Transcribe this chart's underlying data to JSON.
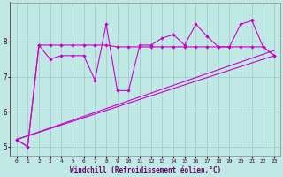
{
  "xlabel": "Windchill (Refroidissement éolien,°C)",
  "x": [
    0,
    1,
    2,
    3,
    4,
    5,
    6,
    7,
    8,
    9,
    10,
    11,
    12,
    13,
    14,
    15,
    16,
    17,
    18,
    19,
    20,
    21,
    22,
    23
  ],
  "line1": [
    5.2,
    5.0,
    7.9,
    7.5,
    7.6,
    7.6,
    7.6,
    6.9,
    8.5,
    6.6,
    6.6,
    7.9,
    7.9,
    8.1,
    8.2,
    7.9,
    8.5,
    8.15,
    7.85,
    7.85,
    8.5,
    8.6,
    7.85,
    7.6
  ],
  "line2": [
    5.2,
    5.0,
    7.9,
    7.9,
    7.9,
    7.9,
    7.9,
    7.9,
    7.9,
    7.85,
    7.85,
    7.85,
    7.85,
    7.85,
    7.85,
    7.85,
    7.85,
    7.85,
    7.85,
    7.85,
    7.85,
    7.85,
    7.85,
    7.6
  ],
  "line3_x": [
    0,
    23
  ],
  "line3_y": [
    5.2,
    7.6
  ],
  "line4_x": [
    0,
    23
  ],
  "line4_y": [
    5.2,
    7.75
  ],
  "bg_color": "#c0e8e4",
  "line_color": "#cc00cc",
  "grid_color": "#9ecfcc",
  "ylim": [
    4.75,
    9.1
  ],
  "xlim": [
    -0.5,
    23.5
  ],
  "yticks": [
    5,
    6,
    7,
    8
  ],
  "xticks": [
    0,
    1,
    2,
    3,
    4,
    5,
    6,
    7,
    8,
    9,
    10,
    11,
    12,
    13,
    14,
    15,
    16,
    17,
    18,
    19,
    20,
    21,
    22,
    23
  ],
  "xlabel_color": "#660066",
  "tick_color": "#330033"
}
